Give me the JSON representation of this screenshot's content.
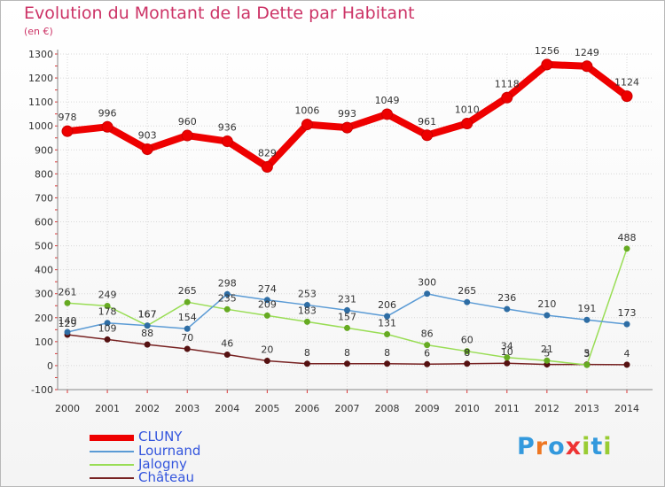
{
  "title": "Evolution du Montant de la Dette par Habitant",
  "subtitle": "(en €)",
  "logo_text": "Proxiti",
  "chart_data": {
    "type": "line",
    "x": [
      "2000",
      "2001",
      "2002",
      "2003",
      "2004",
      "2005",
      "2006",
      "2007",
      "2008",
      "2009",
      "2010",
      "2011",
      "2012",
      "2013",
      "2014"
    ],
    "ylim": [
      -100,
      1300
    ],
    "yticks": [
      -100,
      0,
      100,
      200,
      300,
      400,
      500,
      600,
      700,
      800,
      900,
      1000,
      1100,
      1200,
      1300
    ],
    "grid": true,
    "legend_position": "bottom-left",
    "series": [
      {
        "name": "CLUNY",
        "color": "#ee0000",
        "values": [
          978,
          996,
          903,
          960,
          936,
          829,
          1006,
          993,
          1049,
          961,
          1010,
          1118,
          1256,
          1249,
          1124
        ]
      },
      {
        "name": "Lournand",
        "color": "#5b9bd5",
        "values": [
          140,
          178,
          167,
          154,
          298,
          274,
          253,
          231,
          206,
          300,
          265,
          236,
          210,
          191,
          173
        ]
      },
      {
        "name": "Jalogny",
        "color": "#99dd55",
        "values": [
          261,
          249,
          167,
          265,
          235,
          209,
          183,
          157,
          131,
          86,
          60,
          34,
          21,
          3,
          488
        ]
      },
      {
        "name": "Château",
        "color": "#772222",
        "values": [
          129,
          109,
          88,
          70,
          46,
          20,
          8,
          8,
          8,
          6,
          8,
          10,
          5,
          5,
          4
        ]
      }
    ]
  }
}
